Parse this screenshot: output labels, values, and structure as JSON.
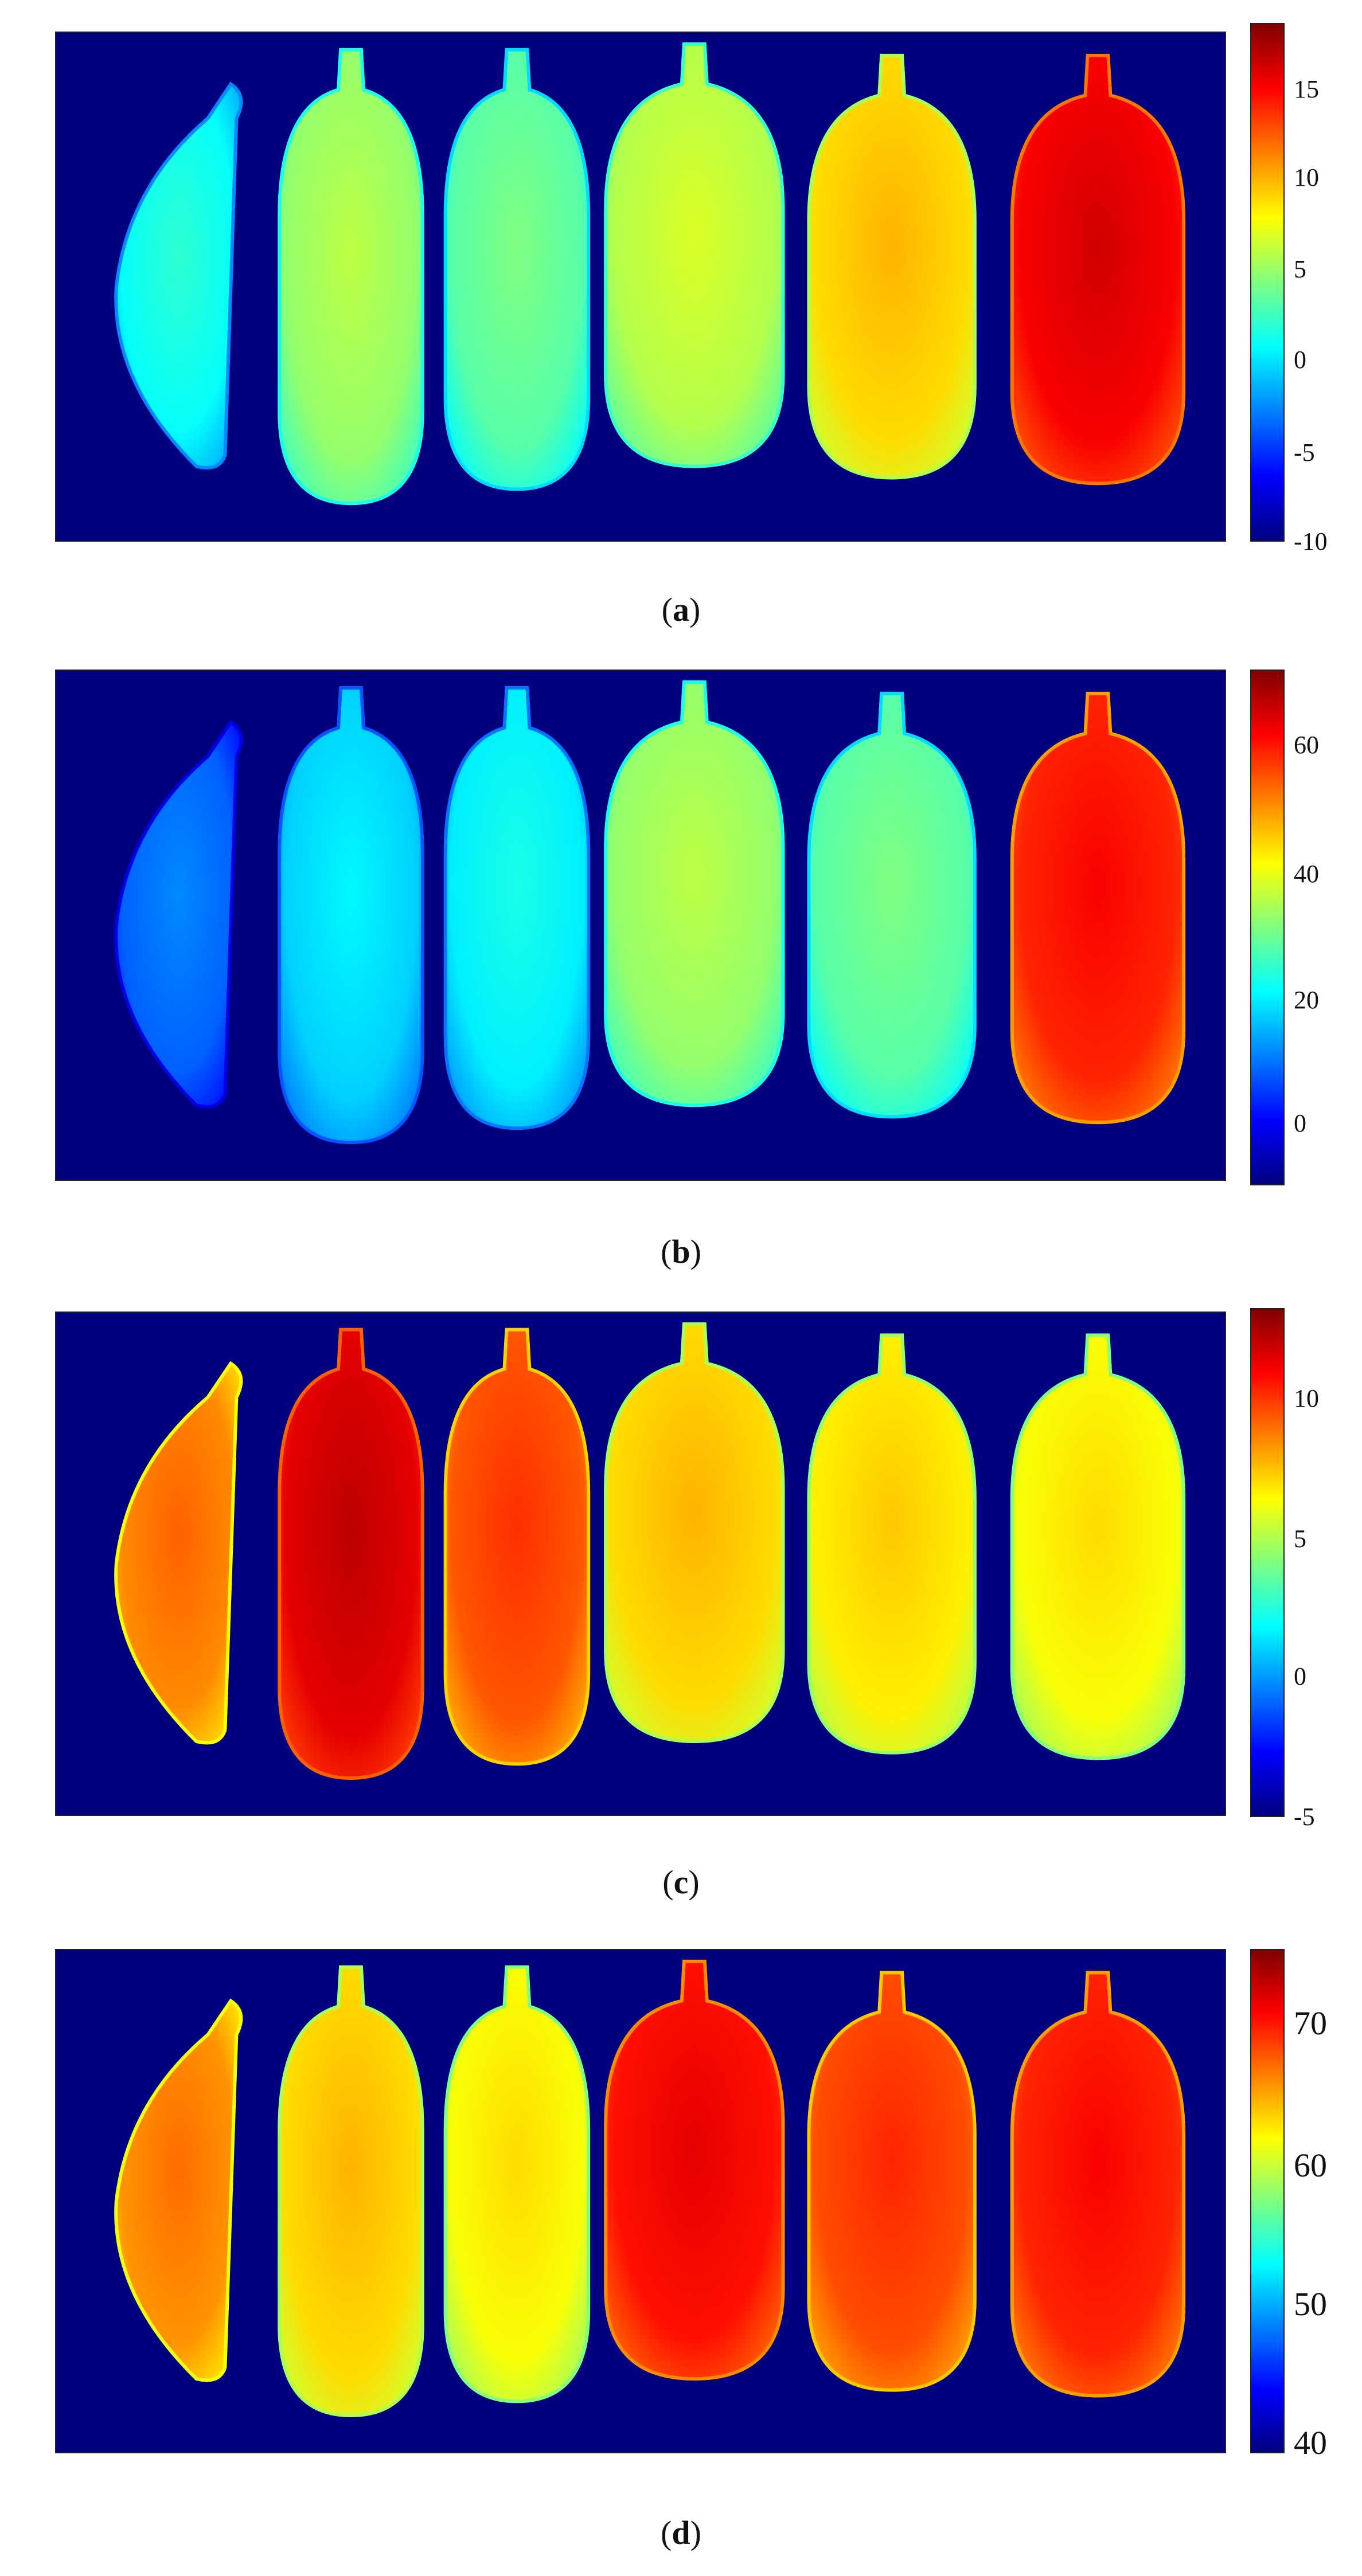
{
  "colors": {
    "background": "#00007f",
    "jet": [
      "#00007f",
      "#0000ff",
      "#0080ff",
      "#00ffff",
      "#80ff80",
      "#ffff00",
      "#ff8000",
      "#ff0000",
      "#7f0000"
    ]
  },
  "panels": [
    {
      "id": "a",
      "caption_open": "(",
      "caption_letter": "a",
      "caption_close": ")",
      "colorbar_ticks": [
        "15",
        "10",
        "5",
        "0",
        "-5",
        "-10"
      ],
      "colorbar_range": [
        -10,
        17.5
      ],
      "fruit_levels": [
        0.38,
        0.52,
        0.46,
        0.55,
        0.66,
        0.88
      ]
    },
    {
      "id": "b",
      "caption_open": "(",
      "caption_letter": "b",
      "caption_close": ")",
      "colorbar_ticks": [
        "60",
        "40",
        "20",
        "0"
      ],
      "colorbar_range": [
        -10,
        72
      ],
      "fruit_levels": [
        0.22,
        0.33,
        0.36,
        0.52,
        0.46,
        0.84
      ]
    },
    {
      "id": "c",
      "caption_open": "(",
      "caption_letter": "c",
      "caption_close": ")",
      "colorbar_ticks": [
        "10",
        "5",
        "0",
        "-5"
      ],
      "colorbar_range": [
        -5,
        13
      ],
      "fruit_levels": [
        0.74,
        0.9,
        0.79,
        0.66,
        0.64,
        0.62
      ]
    },
    {
      "id": "d",
      "caption_open": "(",
      "caption_letter": "d",
      "caption_close": ")",
      "colorbar_ticks": [
        "70",
        "60",
        "50",
        "40"
      ],
      "colorbar_range": [
        40,
        79
      ],
      "fruit_levels": [
        0.73,
        0.66,
        0.62,
        0.86,
        0.8,
        0.84
      ]
    }
  ]
}
